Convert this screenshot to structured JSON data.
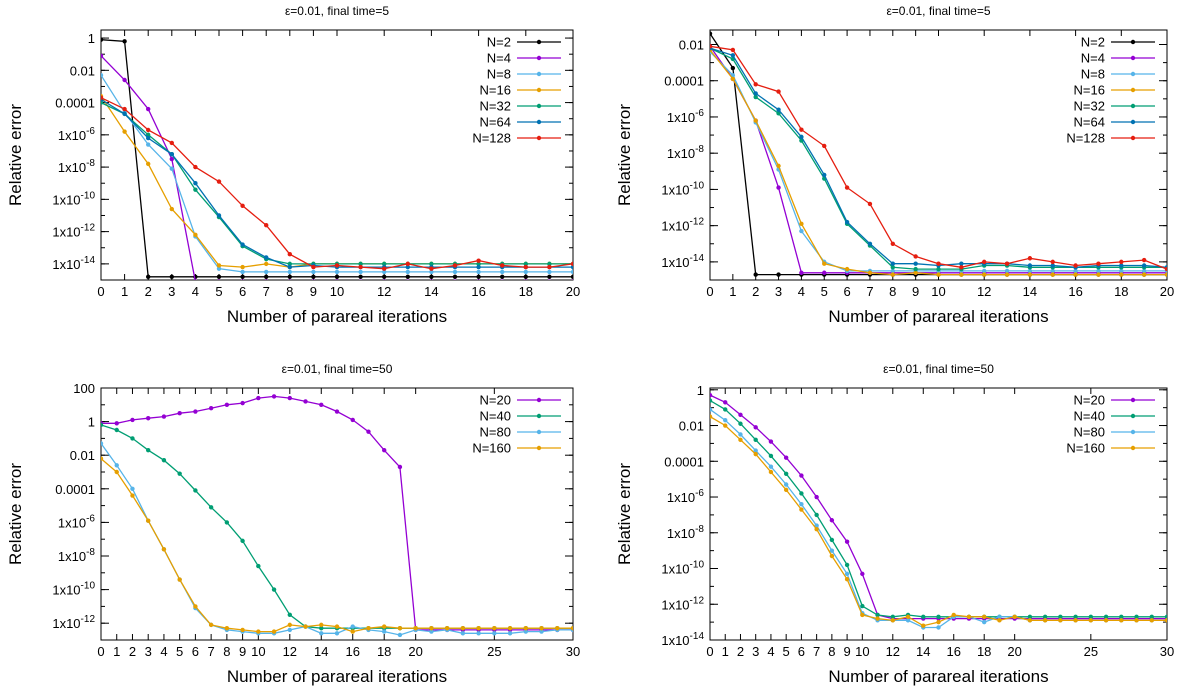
{
  "chart_data": [
    {
      "type": "line",
      "title": "ε=0.01, final time=5",
      "xlabel": "Number of parareal iterations",
      "ylabel": "Relative error",
      "y_scale": "log",
      "xlim": [
        0,
        20
      ],
      "ylim_exp": [
        -15,
        0.5
      ],
      "xticks": [
        "0",
        "1",
        "2",
        "3",
        "4",
        "5",
        "6",
        "7",
        "8",
        "9",
        "10",
        "12",
        "14",
        "16",
        "18",
        "20"
      ],
      "yticks": [
        {
          "exp": 0,
          "label": "1"
        },
        {
          "exp": -2,
          "label": "0.01"
        },
        {
          "exp": -4,
          "label": "0.0001"
        },
        {
          "exp": -6,
          "label": "1x10",
          "sup": "-6"
        },
        {
          "exp": -8,
          "label": "1x10",
          "sup": "-8"
        },
        {
          "exp": -10,
          "label": "1x10",
          "sup": "-10"
        },
        {
          "exp": -12,
          "label": "1x10",
          "sup": "-12"
        },
        {
          "exp": -14,
          "label": "1x10",
          "sup": "-14"
        }
      ],
      "grid": false,
      "legend_position": "top-right",
      "x": [
        0,
        1,
        2,
        3,
        4,
        5,
        6,
        7,
        8,
        9,
        10,
        11,
        12,
        13,
        14,
        15,
        16,
        17,
        18,
        19,
        20
      ],
      "series": [
        {
          "name": "N=2",
          "color": "#000000",
          "log10_values": [
            -0.1,
            -0.2,
            -14.8,
            -14.8,
            -14.8,
            -14.8,
            -14.8,
            -14.8,
            -14.8,
            -14.8,
            -14.8,
            -14.8,
            -14.8,
            -14.8,
            -14.8,
            -14.8,
            -14.8,
            -14.8,
            -14.8,
            -14.8,
            -14.8
          ]
        },
        {
          "name": "N=4",
          "color": "#9400d3",
          "log10_values": [
            -1.1,
            -2.6,
            -4.4,
            -7.5,
            -15.1,
            -15.1,
            -15.1,
            -15.1,
            -15.1,
            -15.1,
            -15.1,
            -15.1,
            -15.1,
            -15.1,
            -15.1,
            -15.1,
            -15.1,
            -15.1,
            -15.1,
            -15.1,
            -15.1
          ]
        },
        {
          "name": "N=8",
          "color": "#56b4e9",
          "log10_values": [
            -2.3,
            -4.6,
            -6.6,
            -8.1,
            -12.3,
            -14.3,
            -14.5,
            -14.5,
            -14.5,
            -14.5,
            -14.5,
            -14.5,
            -14.5,
            -14.5,
            -14.5,
            -14.5,
            -14.5,
            -14.5,
            -14.5,
            -14.5,
            -14.5
          ]
        },
        {
          "name": "N=16",
          "color": "#e69f00",
          "log10_values": [
            -3.6,
            -5.8,
            -7.8,
            -10.6,
            -12.2,
            -14.1,
            -14.2,
            -14.0,
            -14.2,
            -14.0,
            -14.0,
            -14.0,
            -14.0,
            -14.0,
            -14.0,
            -14.0,
            -14.0,
            -14.0,
            -14.0,
            -14.0,
            -14.0
          ]
        },
        {
          "name": "N=32",
          "color": "#009e73",
          "log10_values": [
            -4.0,
            -4.7,
            -6.0,
            -7.2,
            -9.4,
            -11.1,
            -12.9,
            -13.7,
            -14.0,
            -14.0,
            -14.0,
            -14.0,
            -14.0,
            -14.0,
            -14.0,
            -14.0,
            -14.0,
            -14.0,
            -14.0,
            -14.0,
            -14.0
          ]
        },
        {
          "name": "N=64",
          "color": "#0072b2",
          "log10_values": [
            -3.8,
            -4.7,
            -6.2,
            -7.2,
            -9.0,
            -11.0,
            -12.8,
            -13.6,
            -14.2,
            -14.1,
            -14.2,
            -14.2,
            -14.2,
            -14.2,
            -14.2,
            -14.2,
            -14.2,
            -14.2,
            -14.2,
            -14.2,
            -14.2
          ]
        },
        {
          "name": "N=128",
          "color": "#e51e10",
          "log10_values": [
            -3.7,
            -4.4,
            -5.7,
            -6.5,
            -8.0,
            -8.9,
            -10.4,
            -11.6,
            -13.4,
            -14.2,
            -14.1,
            -14.2,
            -14.3,
            -14.0,
            -14.3,
            -14.1,
            -13.8,
            -14.1,
            -14.2,
            -14.2,
            -14.0
          ]
        }
      ]
    },
    {
      "type": "line",
      "title": "ε=0.01, final time=5",
      "xlabel": "Number of parareal iterations",
      "ylabel": "Relative error",
      "y_scale": "log",
      "xlim": [
        0,
        20
      ],
      "ylim_exp": [
        -15,
        -1.2
      ],
      "xticks": [
        "0",
        "1",
        "2",
        "3",
        "4",
        "5",
        "6",
        "7",
        "8",
        "9",
        "10",
        "12",
        "14",
        "16",
        "18",
        "20"
      ],
      "yticks": [
        {
          "exp": -2,
          "label": "0.01"
        },
        {
          "exp": -4,
          "label": "0.0001"
        },
        {
          "exp": -6,
          "label": "1x10",
          "sup": "-6"
        },
        {
          "exp": -8,
          "label": "1x10",
          "sup": "-8"
        },
        {
          "exp": -10,
          "label": "1x10",
          "sup": "-10"
        },
        {
          "exp": -12,
          "label": "1x10",
          "sup": "-12"
        },
        {
          "exp": -14,
          "label": "1x10",
          "sup": "-14"
        }
      ],
      "grid": false,
      "legend_position": "top-right",
      "x": [
        0,
        1,
        2,
        3,
        4,
        5,
        6,
        7,
        8,
        9,
        10,
        11,
        12,
        13,
        14,
        15,
        16,
        17,
        18,
        19,
        20
      ],
      "series": [
        {
          "name": "N=2",
          "color": "#000000",
          "log10_values": [
            -1.4,
            -3.3,
            -14.7,
            -14.7,
            -14.7,
            -14.7,
            -14.7,
            -14.7,
            -14.7,
            -14.7,
            -14.7,
            -14.7,
            -14.7,
            -14.7,
            -14.7,
            -14.7,
            -14.7,
            -14.7,
            -14.7,
            -14.7,
            -14.7
          ]
        },
        {
          "name": "N=4",
          "color": "#9400d3",
          "log10_values": [
            -2.1,
            -3.9,
            -6.2,
            -9.9,
            -14.6,
            -14.6,
            -14.6,
            -14.6,
            -14.6,
            -14.6,
            -14.6,
            -14.6,
            -14.6,
            -14.6,
            -14.6,
            -14.6,
            -14.6,
            -14.6,
            -14.6,
            -14.6,
            -14.6
          ]
        },
        {
          "name": "N=8",
          "color": "#56b4e9",
          "log10_values": [
            -2.4,
            -3.7,
            -6.3,
            -8.9,
            -12.3,
            -14.0,
            -14.5,
            -14.5,
            -14.5,
            -14.5,
            -14.5,
            -14.5,
            -14.5,
            -14.5,
            -14.5,
            -14.5,
            -14.5,
            -14.5,
            -14.5,
            -14.5,
            -14.5
          ]
        },
        {
          "name": "N=16",
          "color": "#e69f00",
          "log10_values": [
            -2.3,
            -3.9,
            -6.2,
            -8.7,
            -11.9,
            -14.1,
            -14.4,
            -14.6,
            -14.7,
            -14.6,
            -14.7,
            -14.7,
            -14.7,
            -14.7,
            -14.7,
            -14.7,
            -14.7,
            -14.7,
            -14.7,
            -14.7,
            -14.7
          ]
        },
        {
          "name": "N=32",
          "color": "#009e73",
          "log10_values": [
            -2.2,
            -2.8,
            -4.9,
            -5.8,
            -7.3,
            -9.4,
            -11.9,
            -13.1,
            -14.3,
            -14.4,
            -14.4,
            -14.4,
            -14.2,
            -14.2,
            -14.3,
            -14.3,
            -14.3,
            -14.3,
            -14.3,
            -14.3,
            -14.3
          ]
        },
        {
          "name": "N=64",
          "color": "#0072b2",
          "log10_values": [
            -2.2,
            -2.6,
            -4.7,
            -5.6,
            -7.1,
            -9.2,
            -11.8,
            -13.0,
            -14.1,
            -14.1,
            -14.2,
            -14.1,
            -14.1,
            -14.1,
            -14.2,
            -14.2,
            -14.3,
            -14.2,
            -14.2,
            -14.2,
            -14.3
          ]
        },
        {
          "name": "N=128",
          "color": "#e51e10",
          "log10_values": [
            -2.1,
            -2.3,
            -4.2,
            -4.6,
            -6.7,
            -7.6,
            -9.9,
            -10.8,
            -13.0,
            -13.7,
            -14.1,
            -14.3,
            -14.0,
            -14.1,
            -13.8,
            -14.0,
            -14.2,
            -14.1,
            -14.0,
            -13.9,
            -14.4
          ]
        }
      ]
    },
    {
      "type": "line",
      "title": "ε=0.01, final time=50",
      "xlabel": "Number of parareal iterations",
      "ylabel": "Relative error",
      "y_scale": "log",
      "xlim": [
        0,
        30
      ],
      "ylim_exp": [
        -13,
        2
      ],
      "xticks": [
        "0",
        "1",
        "2",
        "3",
        "4",
        "5",
        "6",
        "7",
        "8",
        "9",
        "10",
        "12",
        "14",
        "16",
        "18",
        "20",
        "25",
        "30"
      ],
      "yticks": [
        {
          "exp": 2,
          "label": "100"
        },
        {
          "exp": 0,
          "label": "1"
        },
        {
          "exp": -2,
          "label": "0.01"
        },
        {
          "exp": -4,
          "label": "0.0001"
        },
        {
          "exp": -6,
          "label": "1x10",
          "sup": "-6"
        },
        {
          "exp": -8,
          "label": "1x10",
          "sup": "-8"
        },
        {
          "exp": -10,
          "label": "1x10",
          "sup": "-10"
        },
        {
          "exp": -12,
          "label": "1x10",
          "sup": "-12"
        }
      ],
      "grid": false,
      "legend_position": "top-right",
      "x": [
        0,
        1,
        2,
        3,
        4,
        5,
        6,
        7,
        8,
        9,
        10,
        11,
        12,
        13,
        14,
        15,
        16,
        17,
        18,
        19,
        20,
        21,
        22,
        23,
        24,
        25,
        26,
        27,
        28,
        29,
        30
      ],
      "series": [
        {
          "name": "N=20",
          "color": "#9400d3",
          "log10_values": [
            -0.1,
            -0.1,
            0.1,
            0.2,
            0.3,
            0.5,
            0.6,
            0.8,
            1.0,
            1.1,
            1.4,
            1.5,
            1.4,
            1.2,
            1.0,
            0.6,
            0.1,
            -0.6,
            -1.7,
            -2.7,
            -12.4,
            -12.4,
            -12.4,
            -12.4,
            -12.4,
            -12.4,
            -12.4,
            -12.4,
            -12.4,
            -12.4,
            -12.4
          ]
        },
        {
          "name": "N=40",
          "color": "#009e73",
          "log10_values": [
            -0.2,
            -0.5,
            -1.0,
            -1.7,
            -2.3,
            -3.1,
            -4.1,
            -5.1,
            -6.0,
            -7.1,
            -8.6,
            -10.0,
            -11.5,
            -12.2,
            -12.3,
            -12.3,
            -12.3,
            -12.3,
            -12.3,
            -12.3,
            -12.3,
            -12.3,
            -12.3,
            -12.3,
            -12.3,
            -12.3,
            -12.3,
            -12.3,
            -12.3,
            -12.3,
            -12.3
          ]
        },
        {
          "name": "N=80",
          "color": "#56b4e9",
          "log10_values": [
            -1.3,
            -2.6,
            -4.0,
            -5.9,
            -7.6,
            -9.4,
            -11.1,
            -12.1,
            -12.4,
            -12.5,
            -12.6,
            -12.6,
            -12.4,
            -12.2,
            -12.6,
            -12.6,
            -12.2,
            -12.4,
            -12.5,
            -12.7,
            -12.4,
            -12.5,
            -12.4,
            -12.6,
            -12.6,
            -12.6,
            -12.6,
            -12.5,
            -12.5,
            -12.4,
            -12.4
          ]
        },
        {
          "name": "N=160",
          "color": "#e69f00",
          "log10_values": [
            -2.2,
            -3.0,
            -4.4,
            -5.9,
            -7.6,
            -9.4,
            -11.0,
            -12.1,
            -12.3,
            -12.4,
            -12.5,
            -12.5,
            -12.1,
            -12.2,
            -12.1,
            -12.2,
            -12.5,
            -12.3,
            -12.2,
            -12.3,
            -12.3,
            -12.3,
            -12.3,
            -12.3,
            -12.3,
            -12.3,
            -12.3,
            -12.3,
            -12.3,
            -12.3,
            -12.3
          ]
        }
      ]
    },
    {
      "type": "line",
      "title": "ε=0.01, final time=50",
      "xlabel": "Number of parareal iterations",
      "ylabel": "Relative error",
      "y_scale": "log",
      "xlim": [
        0,
        30
      ],
      "ylim_exp": [
        -14,
        0.1
      ],
      "xticks": [
        "0",
        "1",
        "2",
        "3",
        "4",
        "5",
        "6",
        "7",
        "8",
        "9",
        "10",
        "12",
        "14",
        "16",
        "18",
        "20",
        "25",
        "30"
      ],
      "yticks": [
        {
          "exp": 0,
          "label": "1"
        },
        {
          "exp": -2,
          "label": "0.01"
        },
        {
          "exp": -4,
          "label": "0.0001"
        },
        {
          "exp": -6,
          "label": "1x10",
          "sup": "-6"
        },
        {
          "exp": -8,
          "label": "1x10",
          "sup": "-8"
        },
        {
          "exp": -10,
          "label": "1x10",
          "sup": "-10"
        },
        {
          "exp": -12,
          "label": "1x10",
          "sup": "-12"
        },
        {
          "exp": -14,
          "label": "1x10",
          "sup": "-14"
        }
      ],
      "grid": false,
      "legend_position": "top-right",
      "x": [
        0,
        1,
        2,
        3,
        4,
        5,
        6,
        7,
        8,
        9,
        10,
        11,
        12,
        13,
        14,
        15,
        16,
        17,
        18,
        19,
        20,
        21,
        22,
        23,
        24,
        25,
        26,
        27,
        28,
        29,
        30
      ],
      "series": [
        {
          "name": "N=20",
          "color": "#9400d3",
          "log10_values": [
            -0.3,
            -0.7,
            -1.4,
            -2.1,
            -2.9,
            -3.8,
            -4.8,
            -6.0,
            -7.3,
            -8.5,
            -10.3,
            -12.6,
            -12.8,
            -12.8,
            -12.8,
            -12.8,
            -12.8,
            -12.8,
            -12.8,
            -12.8,
            -12.8,
            -12.8,
            -12.8,
            -12.8,
            -12.8,
            -12.8,
            -12.8,
            -12.8,
            -12.8,
            -12.8,
            -12.8
          ]
        },
        {
          "name": "N=40",
          "color": "#009e73",
          "log10_values": [
            -0.6,
            -1.1,
            -1.9,
            -2.8,
            -3.7,
            -4.7,
            -5.8,
            -7.0,
            -8.4,
            -9.8,
            -12.1,
            -12.6,
            -12.7,
            -12.6,
            -12.7,
            -12.7,
            -12.7,
            -12.7,
            -12.7,
            -12.7,
            -12.7,
            -12.7,
            -12.7,
            -12.7,
            -12.7,
            -12.7,
            -12.7,
            -12.7,
            -12.7,
            -12.7,
            -12.7
          ]
        },
        {
          "name": "N=80",
          "color": "#56b4e9",
          "log10_values": [
            -1.1,
            -1.7,
            -2.5,
            -3.4,
            -4.3,
            -5.3,
            -6.4,
            -7.6,
            -9.0,
            -10.3,
            -12.5,
            -12.9,
            -12.9,
            -12.9,
            -13.3,
            -13.3,
            -12.7,
            -12.7,
            -13.0,
            -12.7,
            -12.7,
            -12.9,
            -12.9,
            -12.9,
            -12.9,
            -12.9,
            -12.9,
            -12.9,
            -12.9,
            -12.9,
            -12.9
          ]
        },
        {
          "name": "N=160",
          "color": "#e69f00",
          "log10_values": [
            -1.5,
            -2.0,
            -2.8,
            -3.6,
            -4.6,
            -5.6,
            -6.7,
            -7.8,
            -9.3,
            -10.6,
            -12.6,
            -12.8,
            -12.9,
            -12.7,
            -13.2,
            -13.0,
            -12.6,
            -12.7,
            -12.7,
            -12.9,
            -12.7,
            -12.9,
            -12.9,
            -12.9,
            -12.9,
            -12.9,
            -12.9,
            -12.9,
            -12.9,
            -12.9,
            -12.9
          ]
        }
      ]
    }
  ]
}
